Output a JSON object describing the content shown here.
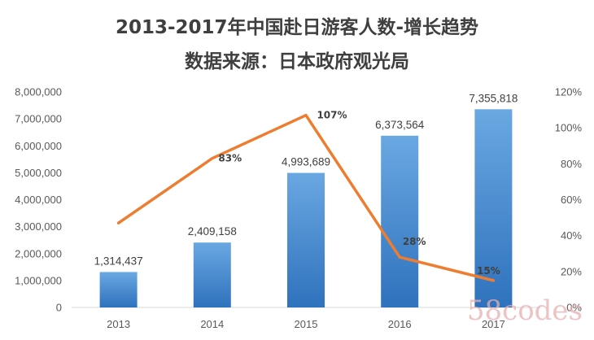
{
  "chart_data": {
    "type": "bar",
    "title": "2013-2017年中国赴日游客人数-增长趋势",
    "subtitle": "数据来源：日本政府观光局",
    "categories": [
      "2013",
      "2014",
      "2015",
      "2016",
      "2017"
    ],
    "series": [
      {
        "type": "bar",
        "axis": "left",
        "values": [
          1314437,
          2409158,
          4993689,
          6373564,
          7355818
        ],
        "labels": [
          "1,314,437",
          "2,409,158",
          "4,993,689",
          "6,373,564",
          "7,355,818"
        ]
      },
      {
        "type": "line",
        "axis": "right",
        "values": [
          47,
          83,
          107,
          28,
          15
        ],
        "labels": [
          "",
          "83%",
          "107%",
          "28%",
          "15%"
        ]
      }
    ],
    "ylim_left": [
      0,
      8000000
    ],
    "yticks_left": [
      "0",
      "1,000,000",
      "2,000,000",
      "3,000,000",
      "4,000,000",
      "5,000,000",
      "6,000,000",
      "7,000,000",
      "8,000,000"
    ],
    "ylim_right": [
      0,
      120
    ],
    "yticks_right": [
      "0%",
      "20%",
      "40%",
      "60%",
      "80%",
      "100%",
      "120%"
    ],
    "grid": false,
    "colors": {
      "bar_top": "#6aa8e2",
      "bar_bottom": "#2f72bd",
      "line": "#ed7d31"
    }
  },
  "watermark": "58codes"
}
